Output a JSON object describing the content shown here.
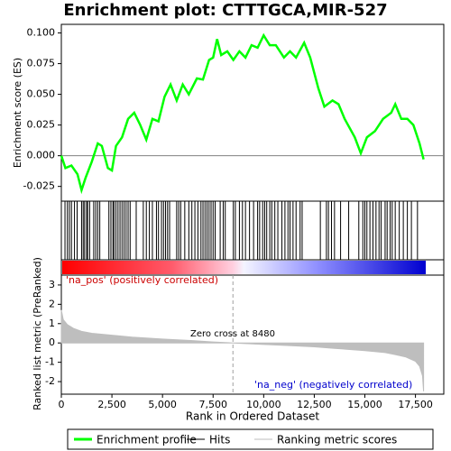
{
  "chart_data": [
    {
      "type": "line",
      "title": "Enrichment plot: CTTTGCA,MIR-527",
      "ylabel": "Enrichment score (ES)",
      "xlim": [
        0,
        18900
      ],
      "ylim": [
        -0.037,
        0.107
      ],
      "yticks": [
        {
          "value": 0.1,
          "label": "0.100"
        },
        0.075,
        {
          "value": 0.05,
          "label": "0.050"
        },
        0.025,
        {
          "value": 0,
          "label": "0.000"
        },
        -0.025
      ],
      "series": [
        {
          "name": "Enrichment profile",
          "color": "#00ff00",
          "x": [
            0,
            200,
            500,
            800,
            1000,
            1200,
            1500,
            1800,
            2000,
            2300,
            2500,
            2700,
            3000,
            3300,
            3600,
            3900,
            4200,
            4500,
            4800,
            5100,
            5400,
            5700,
            6000,
            6300,
            6700,
            7000,
            7300,
            7500,
            7700,
            7900,
            8200,
            8500,
            8800,
            9100,
            9400,
            9700,
            10000,
            10300,
            10600,
            11000,
            11300,
            11600,
            12000,
            12300,
            12700,
            13000,
            13400,
            13700,
            14000,
            14500,
            14800,
            15100,
            15500,
            15900,
            16300,
            16500,
            16800,
            17100,
            17400,
            17700,
            17900
          ],
          "values": [
            0.0,
            -0.01,
            -0.008,
            -0.015,
            -0.028,
            -0.018,
            -0.005,
            0.01,
            0.008,
            -0.01,
            -0.012,
            0.008,
            0.015,
            0.03,
            0.035,
            0.025,
            0.013,
            0.03,
            0.028,
            0.048,
            0.058,
            0.045,
            0.058,
            0.05,
            0.063,
            0.062,
            0.078,
            0.08,
            0.095,
            0.082,
            0.085,
            0.078,
            0.085,
            0.08,
            0.09,
            0.088,
            0.098,
            0.09,
            0.09,
            0.08,
            0.085,
            0.08,
            0.092,
            0.08,
            0.055,
            0.04,
            0.045,
            0.042,
            0.03,
            0.015,
            0.002,
            0.015,
            0.02,
            0.03,
            0.035,
            0.042,
            0.03,
            0.03,
            0.025,
            0.01,
            -0.003
          ]
        }
      ]
    },
    {
      "type": "rug",
      "xlim": [
        0,
        18900
      ],
      "series": [
        {
          "name": "Hits",
          "color": "#000000",
          "values": [
            180,
            300,
            400,
            500,
            650,
            780,
            1000,
            1080,
            1150,
            1250,
            1300,
            1400,
            1600,
            1700,
            1800,
            1900,
            2350,
            2450,
            2550,
            2600,
            2700,
            2800,
            2900,
            3000,
            3100,
            3200,
            3300,
            3400,
            3700,
            4050,
            4200,
            4350,
            4500,
            4700,
            4800,
            4950,
            5050,
            5150,
            5250,
            5350,
            5700,
            5800,
            5900,
            6100,
            6300,
            6450,
            6600,
            6750,
            6900,
            7000,
            7100,
            7200,
            7300,
            7400,
            7500,
            7600,
            7850,
            8000,
            8100,
            8500,
            8600,
            8800,
            8950,
            9100,
            9300,
            9500,
            9700,
            9800,
            9950,
            10050,
            10150,
            10300,
            10400,
            10550,
            10700,
            10900,
            11050,
            11200,
            11300,
            11450,
            11600,
            11800,
            11900,
            12800,
            13100,
            13200,
            13350,
            13500,
            13800,
            14200,
            14700,
            14900,
            15000,
            15100,
            15250,
            15400,
            15550,
            15700,
            15800,
            16000,
            16100,
            16250,
            16350,
            16500,
            16700,
            16900,
            17100,
            17300,
            17600
          ]
        }
      ]
    },
    {
      "type": "area",
      "xlabel": "Rank in Ordered Dataset",
      "ylabel": "Ranked list metric (PreRanked)",
      "xlim": [
        0,
        18900
      ],
      "ylim": [
        -2.65,
        3.51
      ],
      "xticks": [
        0,
        {
          "value": 2500,
          "label": "2,500"
        },
        {
          "value": 5000,
          "label": "5,000"
        },
        {
          "value": 7500,
          "label": "7,500"
        },
        {
          "value": 10000,
          "label": "10,000"
        },
        {
          "value": 12500,
          "label": "12,500"
        },
        {
          "value": 15000,
          "label": "15,000"
        },
        {
          "value": 17500,
          "label": "17,500"
        }
      ],
      "yticks": [
        3,
        2,
        1,
        0,
        -1,
        -2
      ],
      "zero_cross": 8480,
      "zero_cross_label": "Zero cross at 8480",
      "pos_label": "'na_pos' (positively correlated)",
      "neg_label": "'na_neg' (negatively correlated)",
      "series": [
        {
          "name": "Ranking metric scores",
          "color": "#bebebe",
          "x": [
            0,
            100,
            300,
            600,
            1000,
            1500,
            2500,
            3500,
            5000,
            6500,
            7500,
            8480,
            10000,
            11500,
            12500,
            13500,
            15000,
            16000,
            16500,
            17000,
            17500,
            17700,
            17850,
            17900
          ],
          "values": [
            1.7,
            1.2,
            0.95,
            0.75,
            0.6,
            0.5,
            0.4,
            0.3,
            0.2,
            0.12,
            0.05,
            0,
            -0.08,
            -0.15,
            -0.2,
            -0.28,
            -0.4,
            -0.5,
            -0.6,
            -0.72,
            -0.95,
            -1.2,
            -1.7,
            -2.5
          ]
        }
      ]
    }
  ]
}
